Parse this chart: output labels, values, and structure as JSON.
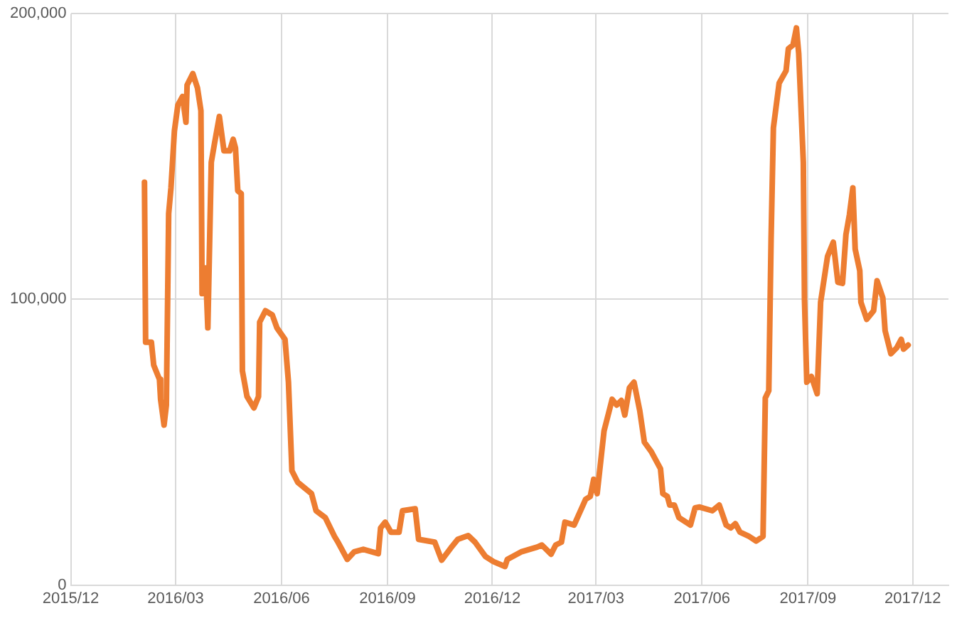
{
  "chart_data": {
    "type": "line",
    "x": [
      "2016-02-03",
      "2016-02-04",
      "2016-02-09",
      "2016-02-11",
      "2016-02-16",
      "2016-02-17",
      "2016-02-20",
      "2016-02-22",
      "2016-02-24",
      "2016-02-26",
      "2016-02-29",
      "2016-03-03",
      "2016-03-07",
      "2016-03-10",
      "2016-03-11",
      "2016-03-16",
      "2016-03-20",
      "2016-03-23",
      "2016-03-24",
      "2016-03-27",
      "2016-03-29",
      "2016-04-01",
      "2016-04-04",
      "2016-04-08",
      "2016-04-12",
      "2016-04-17",
      "2016-04-20",
      "2016-04-22",
      "2016-04-24",
      "2016-04-27",
      "2016-04-28",
      "2016-05-02",
      "2016-05-08",
      "2016-05-12",
      "2016-05-13",
      "2016-05-18",
      "2016-05-24",
      "2016-05-28",
      "2016-06-04",
      "2016-06-07",
      "2016-06-10",
      "2016-06-15",
      "2016-06-27",
      "2016-07-01",
      "2016-07-09",
      "2016-07-17",
      "2016-07-20",
      "2016-07-28",
      "2016-08-03",
      "2016-08-11",
      "2016-08-24",
      "2016-08-26",
      "2016-08-30",
      "2016-09-04",
      "2016-09-11",
      "2016-09-14",
      "2016-09-25",
      "2016-09-28",
      "2016-10-12",
      "2016-10-18",
      "2016-10-26",
      "2016-11-01",
      "2016-11-10",
      "2016-11-16",
      "2016-11-25",
      "2016-12-02",
      "2016-12-12",
      "2016-12-14",
      "2016-12-26",
      "2017-01-09",
      "2017-01-13",
      "2017-01-21",
      "2017-01-25",
      "2017-01-30",
      "2017-02-02",
      "2017-02-10",
      "2017-02-20",
      "2017-02-24",
      "2017-02-27",
      "2017-03-02",
      "2017-03-08",
      "2017-03-15",
      "2017-03-19",
      "2017-03-23",
      "2017-03-26",
      "2017-03-30",
      "2017-04-03",
      "2017-04-08",
      "2017-04-12",
      "2017-04-18",
      "2017-04-26",
      "2017-04-28",
      "2017-05-02",
      "2017-05-04",
      "2017-05-08",
      "2017-05-12",
      "2017-05-22",
      "2017-05-26",
      "2017-05-30",
      "2017-06-10",
      "2017-06-16",
      "2017-06-22",
      "2017-06-26",
      "2017-06-30",
      "2017-07-04",
      "2017-07-12",
      "2017-07-18",
      "2017-07-24",
      "2017-07-26",
      "2017-07-29",
      "2017-07-31",
      "2017-08-02",
      "2017-08-07",
      "2017-08-13",
      "2017-08-15",
      "2017-08-19",
      "2017-08-22",
      "2017-08-24",
      "2017-08-28",
      "2017-08-29",
      "2017-08-31",
      "2017-09-04",
      "2017-09-09",
      "2017-09-12",
      "2017-09-18",
      "2017-09-23",
      "2017-09-27",
      "2017-10-01",
      "2017-10-04",
      "2017-10-07",
      "2017-10-10",
      "2017-10-12",
      "2017-10-16",
      "2017-10-17",
      "2017-10-22",
      "2017-10-28",
      "2017-10-31",
      "2017-11-05",
      "2017-11-07",
      "2017-11-12",
      "2017-11-17",
      "2017-11-21",
      "2017-11-23",
      "2017-11-27"
    ],
    "series": [
      {
        "color": "#ed7d31",
        "values": [
          141000,
          85000,
          85000,
          77000,
          72000,
          65000,
          56000,
          63000,
          130000,
          139000,
          159000,
          168000,
          171000,
          162000,
          175000,
          179000,
          174000,
          166000,
          102000,
          111000,
          90000,
          148000,
          155000,
          164000,
          152000,
          152000,
          156000,
          153000,
          138000,
          137000,
          75000,
          66000,
          62000,
          66000,
          92000,
          96000,
          94500,
          90000,
          86000,
          71000,
          40000,
          36000,
          32000,
          26000,
          23600,
          17000,
          15000,
          9000,
          11600,
          12500,
          11000,
          20000,
          22000,
          18500,
          18500,
          26000,
          26700,
          16000,
          15000,
          8700,
          13000,
          16000,
          17300,
          15000,
          10000,
          8200,
          6500,
          9000,
          11600,
          13300,
          14000,
          10800,
          14000,
          15000,
          22000,
          21000,
          30000,
          31000,
          37000,
          32000,
          54000,
          65000,
          63000,
          64600,
          59500,
          69000,
          71000,
          61000,
          50000,
          46700,
          40700,
          32000,
          31000,
          28000,
          28000,
          23600,
          21000,
          27000,
          27300,
          26000,
          28000,
          21000,
          20000,
          21500,
          18500,
          17000,
          15400,
          17000,
          65500,
          68000,
          121000,
          160000,
          175700,
          180000,
          187700,
          189000,
          195000,
          186000,
          148000,
          100000,
          71000,
          73000,
          67000,
          99000,
          115000,
          120000,
          106000,
          105600,
          122700,
          129600,
          139000,
          117600,
          110000,
          99000,
          93000,
          96000,
          106500,
          100500,
          89000,
          81000,
          83000,
          86000,
          82600,
          84000
        ]
      }
    ],
    "xlim": [
      "2015-12",
      "2018-01"
    ],
    "xticks": [
      {
        "value": "2015-12",
        "label": "2015/12"
      },
      {
        "value": "2016-03",
        "label": "2016/03"
      },
      {
        "value": "2016-06",
        "label": "2016/06"
      },
      {
        "value": "2016-09",
        "label": "2016/09"
      },
      {
        "value": "2016-12",
        "label": "2016/12"
      },
      {
        "value": "2017-03",
        "label": "2017/03"
      },
      {
        "value": "2017-06",
        "label": "2017/06"
      },
      {
        "value": "2017-09",
        "label": "2017/09"
      },
      {
        "value": "2017-12",
        "label": "2017/12"
      }
    ],
    "ylim": [
      0,
      200000
    ],
    "yticks": [
      {
        "value": 0,
        "label": "0"
      },
      {
        "value": 100000,
        "label": "100,000"
      },
      {
        "value": 200000,
        "label": "200,000"
      }
    ],
    "grid": true,
    "legend": false,
    "marker": "none",
    "line_style": "solid"
  }
}
